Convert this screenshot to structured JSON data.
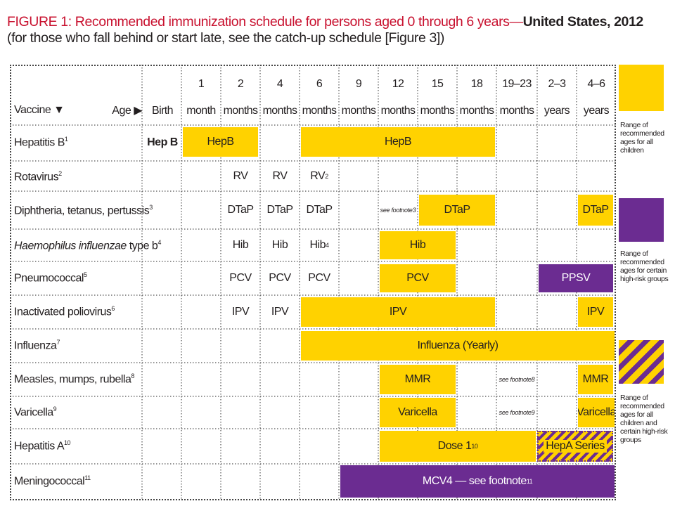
{
  "title": {
    "red_part": "FIGURE 1: Recommended immunization schedule for persons aged 0 through 6 years—",
    "bold_part": "United States, 2012",
    "rest": " (for those who fall behind or start late, see the catch-up schedule [Figure 3])"
  },
  "header": {
    "vaccine_label": "Vaccine ▼",
    "age_label": "Age ▶",
    "ages": [
      {
        "top": "",
        "bottom": "Birth"
      },
      {
        "top": "1",
        "bottom": "month"
      },
      {
        "top": "2",
        "bottom": "months"
      },
      {
        "top": "4",
        "bottom": "months"
      },
      {
        "top": "6",
        "bottom": "months"
      },
      {
        "top": "9",
        "bottom": "months"
      },
      {
        "top": "12",
        "bottom": "months"
      },
      {
        "top": "15",
        "bottom": "months"
      },
      {
        "top": "18",
        "bottom": "months"
      },
      {
        "top": "19–23",
        "bottom": "months"
      },
      {
        "top": "2–3",
        "bottom": "years"
      },
      {
        "top": "4–6",
        "bottom": "years"
      }
    ]
  },
  "rows": [
    {
      "name": "Hepatitis B",
      "sup": "1",
      "italic": false
    },
    {
      "name": "Rotavirus",
      "sup": "2",
      "italic": false
    },
    {
      "name": "Diphtheria, tetanus, pertussis",
      "sup": "3",
      "italic": false
    },
    {
      "name_italic": "Haemophilus influenzae",
      "name": " type b",
      "sup": "4",
      "italic": true
    },
    {
      "name": "Pneumococcal",
      "sup": "5",
      "italic": false
    },
    {
      "name": "Inactivated poliovirus",
      "sup": "6",
      "italic": false
    },
    {
      "name": "Influenza",
      "sup": "7",
      "italic": false
    },
    {
      "name": "Measles, mumps, rubella",
      "sup": "8",
      "italic": false
    },
    {
      "name": "Varicella",
      "sup": "9",
      "italic": false
    },
    {
      "name": "Hepatitis A",
      "sup": "10",
      "italic": false
    },
    {
      "name": "Meningococcal",
      "sup": "11",
      "italic": false
    }
  ],
  "doses": {
    "hepb_birth": "Hep B",
    "hepb_bar1": "HepB",
    "hepb_bar2": "HepB",
    "rv2": "RV",
    "rv4": "RV",
    "rv6": "RV",
    "rv6_sup": "2",
    "dtap2": "DTaP",
    "dtap4": "DTaP",
    "dtap6": "DTaP",
    "dtap_footnote": "see footnote",
    "dtap_footnote_sup": "3",
    "dtap_bar": "DTaP",
    "dtap_46": "DTaP",
    "hib2": "Hib",
    "hib4": "Hib",
    "hib6": "Hib",
    "hib6_sup": "4",
    "hib_bar": "Hib",
    "pcv2": "PCV",
    "pcv4": "PCV",
    "pcv6": "PCV",
    "pcv_bar": "PCV",
    "ppsv": "PPSV",
    "ipv2": "IPV",
    "ipv4": "IPV",
    "ipv_bar": "IPV",
    "ipv_46": "IPV",
    "flu_bar": "Influenza (Yearly)",
    "mmr_bar": "MMR",
    "mmr_footnote": "see footnote",
    "mmr_footnote_sup": "8",
    "mmr_46": "MMR",
    "var_bar": "Varicella",
    "var_footnote": "see footnote",
    "var_footnote_sup": "9",
    "var_46": "Varicella",
    "hepa_bar": "Dose 1",
    "hepa_bar_sup": "10",
    "hepa_series": "HepA Series",
    "mcv4_bar": "MCV4 — see footnote",
    "mcv4_sup": "11"
  },
  "legend": {
    "yellow_text": "Range of recommended ages for all children",
    "purple_text": "Range of recommended ages for certain high-risk groups",
    "hatched_text": "Range of recommended ages for all children and certain high-risk groups"
  },
  "colors": {
    "title_red": "#c8102e",
    "yellow": "#ffd200",
    "purple": "#6b2c91"
  }
}
